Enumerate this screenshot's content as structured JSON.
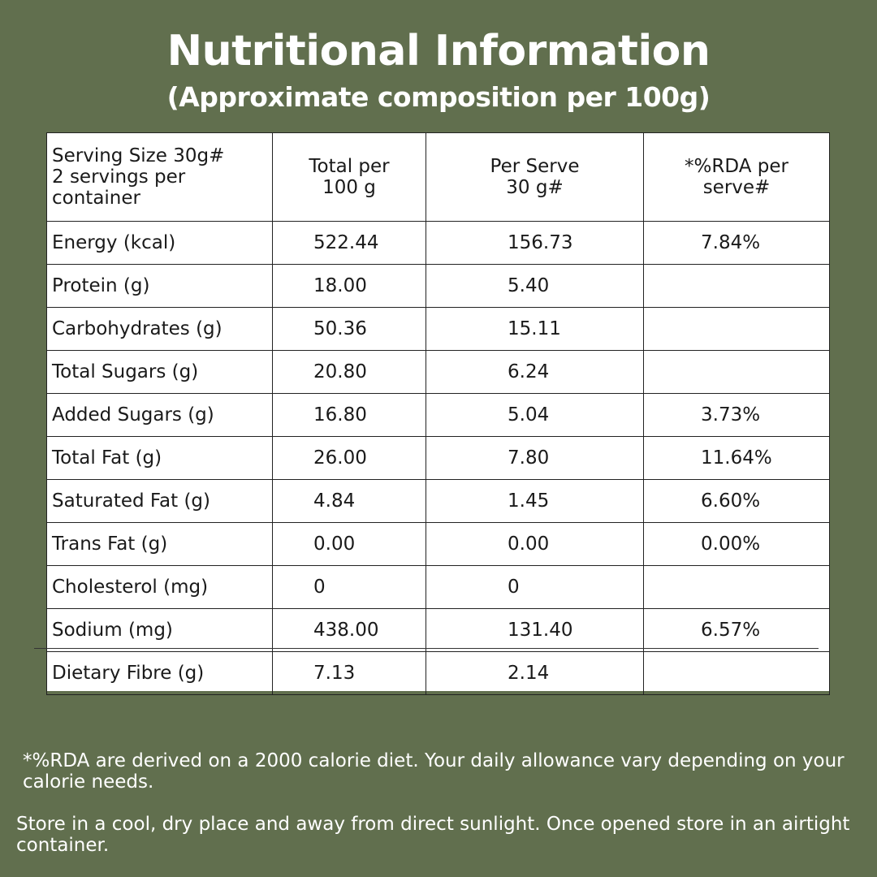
{
  "title": "Nutritional Information",
  "subtitle": "(Approximate composition per 100g)",
  "table": {
    "header": {
      "serving_line1": "Serving Size 30g#",
      "serving_line2": "2 servings per",
      "serving_line3": "container",
      "total_line1": "Total per",
      "total_line2": "100 g",
      "serve_line1": "Per Serve",
      "serve_line2": "30 g#",
      "rda_line1": "*%RDA per",
      "rda_line2": "serve#"
    },
    "rows": [
      {
        "nutrient": "Energy (kcal)",
        "per100": "522.44",
        "perServe": "156.73",
        "rda": "7.84%"
      },
      {
        "nutrient": "Protein (g)",
        "per100": "18.00",
        "perServe": "5.40",
        "rda": ""
      },
      {
        "nutrient": "Carbohydrates (g)",
        "per100": "50.36",
        "perServe": "15.11",
        "rda": ""
      },
      {
        "nutrient": "Total Sugars (g)",
        "per100": "20.80",
        "perServe": "6.24",
        "rda": ""
      },
      {
        "nutrient": "Added Sugars (g)",
        "per100": "16.80",
        "perServe": "5.04",
        "rda": "3.73%"
      },
      {
        "nutrient": "Total Fat (g)",
        "per100": "26.00",
        "perServe": "7.80",
        "rda": "11.64%"
      },
      {
        "nutrient": "Saturated Fat (g)",
        "per100": "4.84",
        "perServe": "1.45",
        "rda": "6.60%"
      },
      {
        "nutrient": "Trans Fat (g)",
        "per100": "0.00",
        "perServe": "0.00",
        "rda": "0.00%"
      },
      {
        "nutrient": "Cholesterol (mg)",
        "per100": "0",
        "perServe": "0",
        "rda": ""
      },
      {
        "nutrient": "Sodium (mg)",
        "per100": "438.00",
        "perServe": "131.40",
        "rda": "6.57%"
      },
      {
        "nutrient": "Dietary Fibre (g)",
        "per100": "7.13",
        "perServe": "2.14",
        "rda": ""
      }
    ]
  },
  "footnote": "*%RDA are derived on a 2000 calorie diet. Your daily allowance vary depending on your calorie needs.",
  "storage": "Store in a cool, dry place and away from direct sunlight. Once opened store in an airtight container.",
  "colors": {
    "background": "#616f4e",
    "table_background": "#ffffff",
    "text_light": "#ffffff"
  }
}
